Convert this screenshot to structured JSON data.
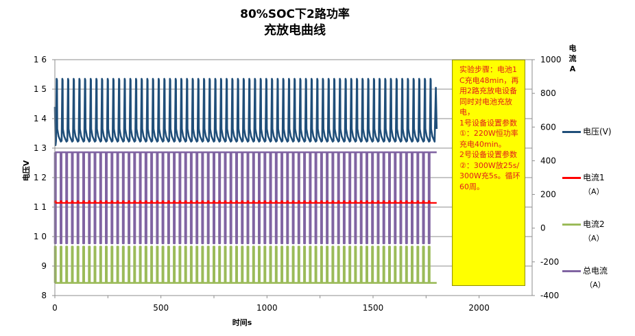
{
  "chart_data": {
    "type": "line",
    "title": "80%SOC下2路功率",
    "subtitle": "充放电曲线",
    "xlabel": "时间s",
    "ylabel": "电压V",
    "y2label_line1": "电流",
    "y2label_line2": "A",
    "xlim": [
      0,
      2250
    ],
    "ylim": [
      8,
      16
    ],
    "y2lim": [
      -400,
      1000
    ],
    "xticks": [
      0,
      500,
      1000,
      1500,
      2000
    ],
    "yticks": [
      "8",
      "9",
      "1 0",
      "1 1",
      "1 2",
      "1 3",
      "1 4",
      "1 5",
      "1 6"
    ],
    "y2ticks": [
      -400,
      -200,
      0,
      200,
      400,
      600,
      800,
      1000
    ],
    "grid": "horizontal",
    "cycle_period_s": 26.7,
    "series": [
      {
        "name": "电压(V)",
        "axis": "left",
        "color": "#1f4e79",
        "charge_value": 15.35,
        "discharge_value": 13.1,
        "start_value": 14.4,
        "end_value": 13.65
      },
      {
        "name": "电流1",
        "unit": "（A）",
        "axis": "right",
        "color": "#ff0000",
        "charge_value": 160,
        "discharge_value": 150
      },
      {
        "name": "电流2",
        "unit": "（A）",
        "axis": "right",
        "color": "#9bbb59",
        "charge_value": -110,
        "discharge_value": -325
      },
      {
        "name": "总电流",
        "unit": "（A）",
        "axis": "right",
        "color": "#8064a2",
        "charge_value": -90,
        "discharge_value": 450
      }
    ],
    "annotation": "实验步骤：电池1C充电48min，再用2路充放电设备同时对电池充放电，\n1号设备设置参数①：220W恒功率充电40min。\n2号设备设置参数②：300W放25s/300W充5s。循环60周。",
    "x_end": 1800
  }
}
